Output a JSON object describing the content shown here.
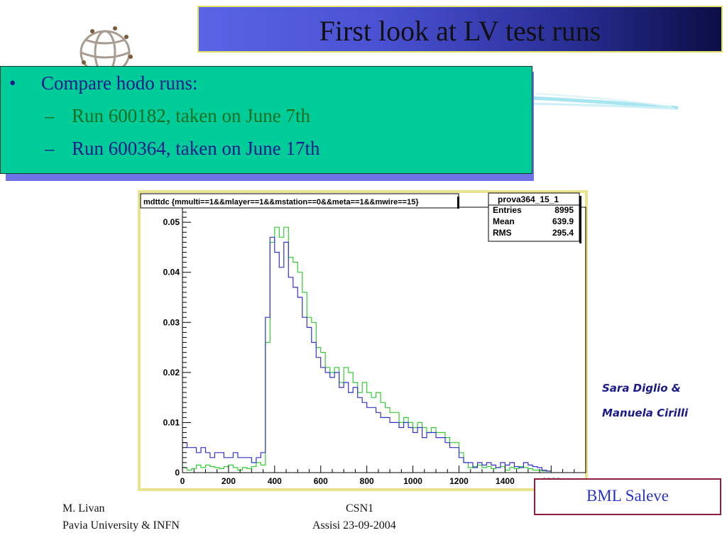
{
  "slide": {
    "title": "First look at LV test runs",
    "bullets": {
      "marker": "•",
      "dash": "–",
      "main": "Compare hodo runs:",
      "sub1": "Run 600182, taken on June 7th",
      "sub2": "Run 600364, taken on June 17th"
    },
    "credit_line1": "Sara Diglio &",
    "credit_line2": "Manuela Cirilli",
    "label_box": "BML Saleve",
    "footer": {
      "left1": "M. Livan",
      "left2": "Pavia University & INFN",
      "center1": "CSN1",
      "center2": "Assisi 23-09-2004"
    },
    "colors": {
      "bullet_box": "#00cc99",
      "title_bar": "#3a40c0",
      "run_600182": "#33cc33",
      "run_600364": "#3333cc",
      "plot_frame": "#e8e08a"
    }
  },
  "chart_data": {
    "type": "line",
    "title": "mdttdc {mmulti==1&&mlayer==1&&mstation==0&&meta==1&&mwire==15}",
    "stats_box": {
      "name": "prova364_15_1",
      "rows": [
        {
          "label": "Entries",
          "value": "8995"
        },
        {
          "label": "Mean",
          "value": "639.9"
        },
        {
          "label": "RMS",
          "value": "295.4"
        }
      ]
    },
    "xlim": [
      0,
      1750
    ],
    "ylim": [
      0,
      0.053
    ],
    "x_ticks": [
      "0",
      "200",
      "400",
      "600",
      "800",
      "1000",
      "1200",
      "1400",
      "1600"
    ],
    "x_tick_values": [
      0,
      200,
      400,
      600,
      800,
      1000,
      1200,
      1400,
      1600
    ],
    "y_ticks": [
      "0",
      "0.01",
      "0.02",
      "0.03",
      "0.04",
      "0.05"
    ],
    "y_tick_values": [
      0,
      0.01,
      0.02,
      0.03,
      0.04,
      0.05
    ],
    "bin_width": 20,
    "series": [
      {
        "color": "#33cc33",
        "x_start": 0,
        "values": [
          0.001,
          0.0005,
          0.0008,
          0.0015,
          0.001,
          0.0015,
          0.0012,
          0.001,
          0.0008,
          0.0012,
          0.0015,
          0.001,
          0.0005,
          0.001,
          0.0008,
          0.0012,
          0.002,
          0.0015,
          0.026,
          0.046,
          0.049,
          0.047,
          0.049,
          0.043,
          0.042,
          0.04,
          0.036,
          0.031,
          0.03,
          0.025,
          0.024,
          0.021,
          0.02,
          0.021,
          0.018,
          0.021,
          0.02,
          0.018,
          0.016,
          0.018,
          0.016,
          0.015,
          0.016,
          0.014,
          0.013,
          0.012,
          0.012,
          0.01,
          0.011,
          0.01,
          0.009,
          0.01,
          0.009,
          0.008,
          0.009,
          0.008,
          0.008,
          0.007,
          0.006,
          0.006,
          0.004,
          0.002,
          0.001,
          0.0012,
          0.0015,
          0.001,
          0.0012,
          0.0008,
          0.001,
          0.0012,
          0.0005,
          0.001,
          0.0008,
          0.0012,
          0.001,
          0.0008,
          0.0005,
          0.0005,
          0.0003,
          0.0003
        ]
      },
      {
        "color": "#3333cc",
        "x_start": 0,
        "values": [
          0.006,
          0.005,
          0.005,
          0.004,
          0.005,
          0.004,
          0.003,
          0.004,
          0.004,
          0.003,
          0.003,
          0.004,
          0.003,
          0.003,
          0.003,
          0.002,
          0.003,
          0.004,
          0.031,
          0.047,
          0.044,
          0.041,
          0.046,
          0.039,
          0.037,
          0.035,
          0.031,
          0.029,
          0.026,
          0.023,
          0.021,
          0.02,
          0.019,
          0.02,
          0.017,
          0.018,
          0.016,
          0.017,
          0.015,
          0.014,
          0.013,
          0.013,
          0.012,
          0.011,
          0.011,
          0.01,
          0.01,
          0.009,
          0.01,
          0.009,
          0.008,
          0.009,
          0.007,
          0.008,
          0.008,
          0.007,
          0.007,
          0.006,
          0.005,
          0.005,
          0.003,
          0.002,
          0.002,
          0.001,
          0.002,
          0.0015,
          0.002,
          0.0015,
          0.001,
          0.002,
          0.0015,
          0.002,
          0.0012,
          0.001,
          0.002,
          0.0015,
          0.0012,
          0.001,
          0.0005,
          0.0003
        ]
      }
    ]
  }
}
